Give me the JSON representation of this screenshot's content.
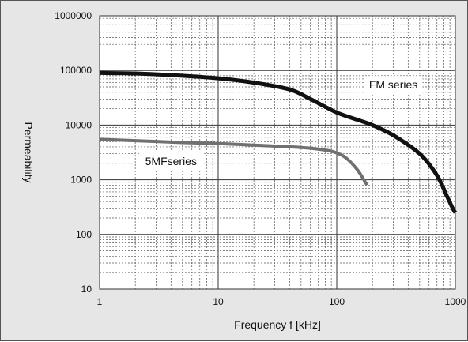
{
  "chart_data": {
    "type": "line",
    "title": "",
    "xlabel": "Frequency f [kHz]",
    "ylabel": "Permeability",
    "x_scale": "log",
    "y_scale": "log",
    "xlim": [
      1,
      1000
    ],
    "ylim": [
      10,
      1000000
    ],
    "grid": true,
    "x_ticks": [
      "1",
      "10",
      "100",
      "1000"
    ],
    "y_ticks": [
      "10",
      "100",
      "1000",
      "10000",
      "100000",
      "1000000"
    ],
    "colors": {
      "background": "#e6e6e6",
      "plot": "#ffffff",
      "grid": "#555555"
    },
    "series": [
      {
        "name": "FM series",
        "color": "#111111",
        "x": [
          1,
          2,
          5,
          10,
          20,
          40,
          60,
          100,
          150,
          200,
          300,
          500,
          700,
          850,
          950,
          1000
        ],
        "y": [
          90000,
          88000,
          80000,
          72000,
          60000,
          45000,
          30000,
          17000,
          12500,
          10000,
          6500,
          3000,
          1200,
          500,
          300,
          250
        ]
      },
      {
        "name": "5MFseries",
        "color": "#707070",
        "x": [
          1,
          2,
          5,
          10,
          20,
          50,
          80,
          100,
          120,
          150,
          180
        ],
        "y": [
          5500,
          5200,
          4800,
          4600,
          4300,
          3900,
          3500,
          3100,
          2500,
          1500,
          800
        ]
      }
    ],
    "annotations": [
      {
        "text": "FM series",
        "x": 300,
        "y": 55000
      },
      {
        "text": "5MFseries",
        "x": 4,
        "y": 2200
      }
    ]
  }
}
